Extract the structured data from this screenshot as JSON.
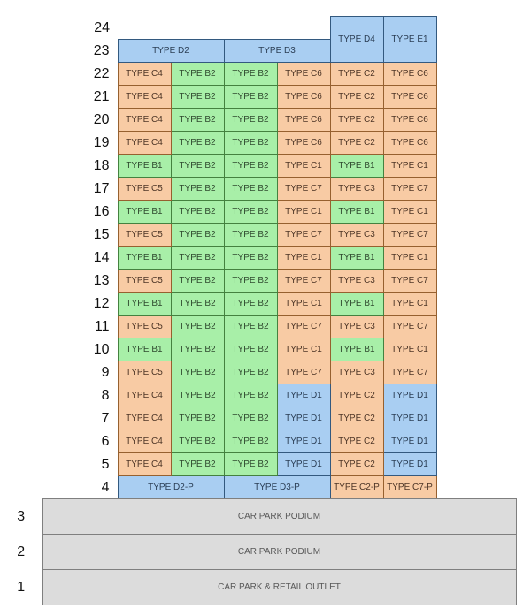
{
  "palette": {
    "blue": {
      "fill": "#A9CEF2",
      "border": "#33597F",
      "text": "#2b3e55"
    },
    "green": {
      "fill": "#A8EFA8",
      "border": "#44813F",
      "text": "#2f4a2f"
    },
    "orange": {
      "fill": "#F8CBA4",
      "border": "#96602F",
      "text": "#4d3526"
    },
    "gray": {
      "fill": "#DCDCDC",
      "border": "#7F7F7F",
      "text": "#595959"
    }
  },
  "tower": {
    "columns": 6,
    "rows": [
      {
        "floor": "24",
        "cells": [
          {
            "label": "",
            "type": "empty"
          },
          {
            "label": "",
            "type": "empty"
          },
          {
            "label": "",
            "type": "empty"
          },
          {
            "label": "",
            "type": "empty"
          },
          {
            "label": "TYPE D4",
            "type": "blue",
            "rowspan": 2
          },
          {
            "label": "TYPE E1",
            "type": "blue",
            "rowspan": 2
          }
        ]
      },
      {
        "floor": "23",
        "cells": [
          {
            "label": "TYPE D2",
            "type": "blue",
            "colspan": 2
          },
          {
            "label": "TYPE D3",
            "type": "blue",
            "colspan": 2
          }
        ]
      },
      {
        "floor": "22",
        "cells": [
          {
            "label": "TYPE C4",
            "type": "orange"
          },
          {
            "label": "TYPE B2",
            "type": "green"
          },
          {
            "label": "TYPE B2",
            "type": "green"
          },
          {
            "label": "TYPE C6",
            "type": "orange"
          },
          {
            "label": "TYPE C2",
            "type": "orange"
          },
          {
            "label": "TYPE C6",
            "type": "orange"
          }
        ]
      },
      {
        "floor": "21",
        "cells": [
          {
            "label": "TYPE C4",
            "type": "orange"
          },
          {
            "label": "TYPE B2",
            "type": "green"
          },
          {
            "label": "TYPE B2",
            "type": "green"
          },
          {
            "label": "TYPE C6",
            "type": "orange"
          },
          {
            "label": "TYPE C2",
            "type": "orange"
          },
          {
            "label": "TYPE C6",
            "type": "orange"
          }
        ]
      },
      {
        "floor": "20",
        "cells": [
          {
            "label": "TYPE C4",
            "type": "orange"
          },
          {
            "label": "TYPE B2",
            "type": "green"
          },
          {
            "label": "TYPE B2",
            "type": "green"
          },
          {
            "label": "TYPE C6",
            "type": "orange"
          },
          {
            "label": "TYPE C2",
            "type": "orange"
          },
          {
            "label": "TYPE C6",
            "type": "orange"
          }
        ]
      },
      {
        "floor": "19",
        "cells": [
          {
            "label": "TYPE C4",
            "type": "orange"
          },
          {
            "label": "TYPE B2",
            "type": "green"
          },
          {
            "label": "TYPE B2",
            "type": "green"
          },
          {
            "label": "TYPE C6",
            "type": "orange"
          },
          {
            "label": "TYPE C2",
            "type": "orange"
          },
          {
            "label": "TYPE C6",
            "type": "orange"
          }
        ]
      },
      {
        "floor": "18",
        "cells": [
          {
            "label": "TYPE B1",
            "type": "green"
          },
          {
            "label": "TYPE B2",
            "type": "green"
          },
          {
            "label": "TYPE B2",
            "type": "green"
          },
          {
            "label": "TYPE C1",
            "type": "orange"
          },
          {
            "label": "TYPE B1",
            "type": "green"
          },
          {
            "label": "TYPE C1",
            "type": "orange"
          }
        ]
      },
      {
        "floor": "17",
        "cells": [
          {
            "label": "TYPE C5",
            "type": "orange"
          },
          {
            "label": "TYPE B2",
            "type": "green"
          },
          {
            "label": "TYPE B2",
            "type": "green"
          },
          {
            "label": "TYPE C7",
            "type": "orange"
          },
          {
            "label": "TYPE C3",
            "type": "orange"
          },
          {
            "label": "TYPE C7",
            "type": "orange"
          }
        ]
      },
      {
        "floor": "16",
        "cells": [
          {
            "label": "TYPE B1",
            "type": "green"
          },
          {
            "label": "TYPE B2",
            "type": "green"
          },
          {
            "label": "TYPE B2",
            "type": "green"
          },
          {
            "label": "TYPE C1",
            "type": "orange"
          },
          {
            "label": "TYPE B1",
            "type": "green"
          },
          {
            "label": "TYPE C1",
            "type": "orange"
          }
        ]
      },
      {
        "floor": "15",
        "cells": [
          {
            "label": "TYPE C5",
            "type": "orange"
          },
          {
            "label": "TYPE B2",
            "type": "green"
          },
          {
            "label": "TYPE B2",
            "type": "green"
          },
          {
            "label": "TYPE C7",
            "type": "orange"
          },
          {
            "label": "TYPE C3",
            "type": "orange"
          },
          {
            "label": "TYPE C7",
            "type": "orange"
          }
        ]
      },
      {
        "floor": "14",
        "cells": [
          {
            "label": "TYPE B1",
            "type": "green"
          },
          {
            "label": "TYPE B2",
            "type": "green"
          },
          {
            "label": "TYPE B2",
            "type": "green"
          },
          {
            "label": "TYPE C1",
            "type": "orange"
          },
          {
            "label": "TYPE B1",
            "type": "green"
          },
          {
            "label": "TYPE C1",
            "type": "orange"
          }
        ]
      },
      {
        "floor": "13",
        "cells": [
          {
            "label": "TYPE C5",
            "type": "orange"
          },
          {
            "label": "TYPE B2",
            "type": "green"
          },
          {
            "label": "TYPE B2",
            "type": "green"
          },
          {
            "label": "TYPE C7",
            "type": "orange"
          },
          {
            "label": "TYPE C3",
            "type": "orange"
          },
          {
            "label": "TYPE C7",
            "type": "orange"
          }
        ]
      },
      {
        "floor": "12",
        "cells": [
          {
            "label": "TYPE B1",
            "type": "green"
          },
          {
            "label": "TYPE B2",
            "type": "green"
          },
          {
            "label": "TYPE B2",
            "type": "green"
          },
          {
            "label": "TYPE C1",
            "type": "orange"
          },
          {
            "label": "TYPE B1",
            "type": "green"
          },
          {
            "label": "TYPE C1",
            "type": "orange"
          }
        ]
      },
      {
        "floor": "11",
        "cells": [
          {
            "label": "TYPE C5",
            "type": "orange"
          },
          {
            "label": "TYPE B2",
            "type": "green"
          },
          {
            "label": "TYPE B2",
            "type": "green"
          },
          {
            "label": "TYPE C7",
            "type": "orange"
          },
          {
            "label": "TYPE C3",
            "type": "orange"
          },
          {
            "label": "TYPE C7",
            "type": "orange"
          }
        ]
      },
      {
        "floor": "10",
        "cells": [
          {
            "label": "TYPE B1",
            "type": "green"
          },
          {
            "label": "TYPE B2",
            "type": "green"
          },
          {
            "label": "TYPE B2",
            "type": "green"
          },
          {
            "label": "TYPE C1",
            "type": "orange"
          },
          {
            "label": "TYPE B1",
            "type": "green"
          },
          {
            "label": "TYPE C1",
            "type": "orange"
          }
        ]
      },
      {
        "floor": "9",
        "cells": [
          {
            "label": "TYPE C5",
            "type": "orange"
          },
          {
            "label": "TYPE B2",
            "type": "green"
          },
          {
            "label": "TYPE B2",
            "type": "green"
          },
          {
            "label": "TYPE C7",
            "type": "orange"
          },
          {
            "label": "TYPE C3",
            "type": "orange"
          },
          {
            "label": "TYPE C7",
            "type": "orange"
          }
        ]
      },
      {
        "floor": "8",
        "cells": [
          {
            "label": "TYPE C4",
            "type": "orange"
          },
          {
            "label": "TYPE B2",
            "type": "green"
          },
          {
            "label": "TYPE B2",
            "type": "green"
          },
          {
            "label": "TYPE D1",
            "type": "blue"
          },
          {
            "label": "TYPE C2",
            "type": "orange"
          },
          {
            "label": "TYPE D1",
            "type": "blue"
          }
        ]
      },
      {
        "floor": "7",
        "cells": [
          {
            "label": "TYPE C4",
            "type": "orange"
          },
          {
            "label": "TYPE B2",
            "type": "green"
          },
          {
            "label": "TYPE B2",
            "type": "green"
          },
          {
            "label": "TYPE D1",
            "type": "blue"
          },
          {
            "label": "TYPE C2",
            "type": "orange"
          },
          {
            "label": "TYPE D1",
            "type": "blue"
          }
        ]
      },
      {
        "floor": "6",
        "cells": [
          {
            "label": "TYPE C4",
            "type": "orange"
          },
          {
            "label": "TYPE B2",
            "type": "green"
          },
          {
            "label": "TYPE B2",
            "type": "green"
          },
          {
            "label": "TYPE D1",
            "type": "blue"
          },
          {
            "label": "TYPE C2",
            "type": "orange"
          },
          {
            "label": "TYPE D1",
            "type": "blue"
          }
        ]
      },
      {
        "floor": "5",
        "cells": [
          {
            "label": "TYPE C4",
            "type": "orange"
          },
          {
            "label": "TYPE B2",
            "type": "green"
          },
          {
            "label": "TYPE B2",
            "type": "green"
          },
          {
            "label": "TYPE D1",
            "type": "blue"
          },
          {
            "label": "TYPE C2",
            "type": "orange"
          },
          {
            "label": "TYPE D1",
            "type": "blue"
          }
        ]
      },
      {
        "floor": "4",
        "cells": [
          {
            "label": "TYPE D2-P",
            "type": "blue",
            "colspan": 2
          },
          {
            "label": "TYPE D3-P",
            "type": "blue",
            "colspan": 2
          },
          {
            "label": "TYPE C2-P",
            "type": "orange"
          },
          {
            "label": "TYPE C7-P",
            "type": "orange"
          }
        ]
      }
    ]
  },
  "podium": {
    "rows": [
      {
        "floor": "3",
        "label": "CAR PARK PODIUM"
      },
      {
        "floor": "2",
        "label": "CAR PARK PODIUM"
      },
      {
        "floor": "1",
        "label": "CAR PARK & RETAIL OUTLET"
      }
    ]
  }
}
